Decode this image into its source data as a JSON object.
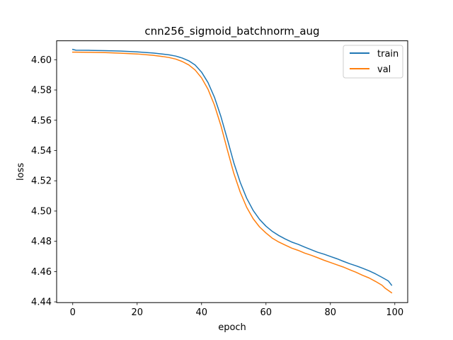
{
  "chart_data": {
    "type": "line",
    "title": "cnn256_sigmoid_batchnorm_aug",
    "xlabel": "epoch",
    "ylabel": "loss",
    "xlim": [
      -5,
      104
    ],
    "ylim": [
      4.4395,
      4.6125
    ],
    "xticks": [
      0,
      20,
      40,
      60,
      80,
      100
    ],
    "xtick_labels": [
      "0",
      "20",
      "40",
      "60",
      "80",
      "100"
    ],
    "yticks": [
      4.44,
      4.46,
      4.48,
      4.5,
      4.52,
      4.54,
      4.56,
      4.58,
      4.6
    ],
    "ytick_labels": [
      "4.44",
      "4.46",
      "4.48",
      "4.50",
      "4.52",
      "4.54",
      "4.56",
      "4.58",
      "4.60"
    ],
    "grid": false,
    "legend_position": "top-right",
    "series": [
      {
        "name": "train",
        "color": "#1f77b4",
        "x": [
          0,
          1,
          5,
          10,
          15,
          20,
          25,
          28,
          30,
          32,
          34,
          36,
          38,
          40,
          42,
          44,
          46,
          48,
          50,
          52,
          54,
          56,
          58,
          60,
          62,
          64,
          66,
          68,
          70,
          72,
          74,
          76,
          78,
          80,
          82,
          84,
          86,
          88,
          90,
          92,
          94,
          96,
          98,
          99
        ],
        "values": [
          4.6068,
          4.6063,
          4.6062,
          4.606,
          4.6057,
          4.6052,
          4.6044,
          4.6037,
          4.6032,
          4.6024,
          4.6011,
          4.5993,
          4.5965,
          4.5918,
          4.5849,
          4.5752,
          4.5625,
          4.5475,
          4.532,
          4.519,
          4.5085,
          4.5005,
          4.4945,
          4.49,
          4.4865,
          4.4838,
          4.4815,
          4.4795,
          4.478,
          4.4762,
          4.4745,
          4.4728,
          4.4715,
          4.47,
          4.4685,
          4.4668,
          4.4652,
          4.4638,
          4.4622,
          4.4605,
          4.4585,
          4.4562,
          4.4538,
          4.451
        ]
      },
      {
        "name": "val",
        "color": "#ff7f0e",
        "x": [
          0,
          1,
          5,
          10,
          15,
          20,
          25,
          28,
          30,
          32,
          34,
          36,
          38,
          40,
          42,
          44,
          46,
          48,
          50,
          52,
          54,
          56,
          58,
          60,
          62,
          64,
          66,
          68,
          70,
          72,
          74,
          76,
          78,
          80,
          82,
          84,
          86,
          88,
          90,
          92,
          94,
          96,
          97,
          99
        ],
        "values": [
          4.605,
          4.605,
          4.6049,
          4.6047,
          4.6043,
          4.6038,
          4.6029,
          4.6021,
          4.6014,
          4.6004,
          4.5988,
          4.5966,
          4.5932,
          4.588,
          4.5805,
          4.57,
          4.5565,
          4.5405,
          4.525,
          4.5125,
          4.5025,
          4.495,
          4.4895,
          4.4855,
          4.482,
          4.4795,
          4.4775,
          4.4755,
          4.474,
          4.4722,
          4.4708,
          4.4692,
          4.4675,
          4.466,
          4.4645,
          4.463,
          4.4612,
          4.4595,
          4.4575,
          4.4558,
          4.4535,
          4.451,
          4.449,
          4.446
        ]
      }
    ]
  }
}
